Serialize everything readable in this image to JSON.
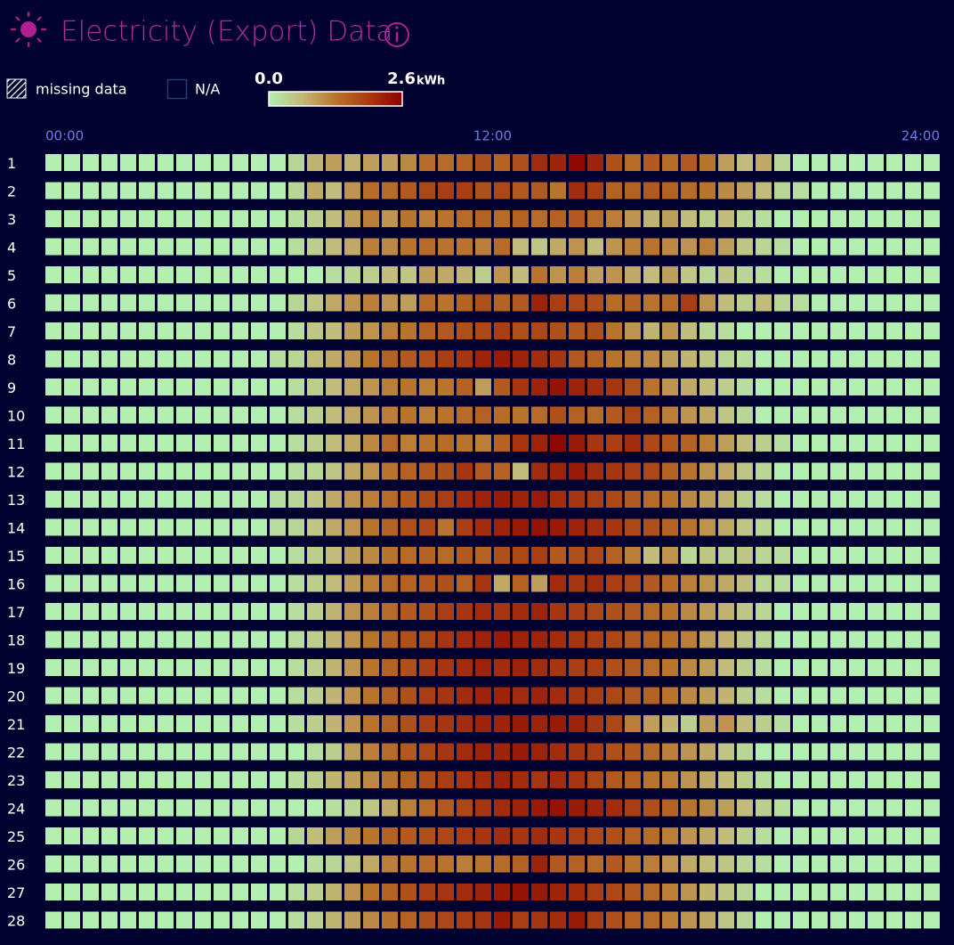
{
  "chart_data": {
    "type": "heatmap",
    "title": "Electricity (Export) Data",
    "legend_items": [
      "missing data",
      "N/A"
    ],
    "colorbar": {
      "min": {
        "value": 0,
        "label": "0.0"
      },
      "max": {
        "value": 2.6,
        "label": "2.6"
      },
      "unit": "kWh",
      "colors": [
        "#b2efb0",
        "#c2b878",
        "#b8742c",
        "#a83a12",
        "#8b0000"
      ]
    },
    "xlim": [
      0,
      24
    ],
    "xticks": [
      {
        "value": 0,
        "label": "00:00"
      },
      {
        "value": 12,
        "label": "12:00"
      },
      {
        "value": 24,
        "label": "24:00"
      }
    ],
    "rows": [
      "1",
      "2",
      "3",
      "4",
      "5",
      "6",
      "7",
      "8",
      "9",
      "10",
      "11",
      "12",
      "13",
      "14",
      "15",
      "16",
      "17",
      "18",
      "19",
      "20",
      "21",
      "22",
      "23",
      "24",
      "25",
      "26",
      "27",
      "28"
    ],
    "values": [
      [
        0,
        0,
        0,
        0,
        0,
        0,
        0,
        0,
        0,
        0,
        0,
        0,
        0,
        0.3,
        0.7,
        0.9,
        0.7,
        0.9,
        0.9,
        1.1,
        1.4,
        1.4,
        1.5,
        1.7,
        1.5,
        1.7,
        2.1,
        2.2,
        2.5,
        2.2,
        1.7,
        1.4,
        1.6,
        1.4,
        1.6,
        1.3,
        0.9,
        0.6,
        0.8,
        0.3,
        0,
        0,
        0,
        0,
        0,
        0,
        0,
        0
      ],
      [
        0,
        0,
        0,
        0,
        0,
        0,
        0,
        0,
        0,
        0,
        0,
        0,
        0,
        0.3,
        0.8,
        0.6,
        1.0,
        1.4,
        1.4,
        1.6,
        1.8,
        1.9,
        1.9,
        1.7,
        1.8,
        1.6,
        1.6,
        1.3,
        2.1,
        1.9,
        1.5,
        1.5,
        1.6,
        1.5,
        1.4,
        1.3,
        1.1,
        0.9,
        0.6,
        0.3,
        0.2,
        0,
        0,
        0,
        0,
        0,
        0,
        0
      ],
      [
        0,
        0,
        0,
        0,
        0,
        0,
        0,
        0,
        0,
        0,
        0,
        0,
        0,
        0.2,
        0.4,
        0.6,
        0.9,
        1.2,
        1.0,
        1.3,
        1.2,
        1.3,
        1.4,
        1.5,
        1.4,
        1.5,
        1.4,
        1.5,
        1.6,
        1.4,
        1.2,
        1.0,
        0.7,
        0.9,
        0.6,
        0.4,
        0.6,
        0.3,
        0.2,
        0,
        0,
        0,
        0,
        0,
        0,
        0,
        0,
        0
      ],
      [
        0,
        0,
        0,
        0,
        0,
        0,
        0,
        0,
        0,
        0,
        0,
        0,
        0,
        0.2,
        0.4,
        0.6,
        0.8,
        1.2,
        1.1,
        1.3,
        1.4,
        1.3,
        1.3,
        1.2,
        1.4,
        0.6,
        0.5,
        0.8,
        1.0,
        0.6,
        1.0,
        1.2,
        1.3,
        1.1,
        1.0,
        1.2,
        0.9,
        0.5,
        0.3,
        0.2,
        0,
        0,
        0,
        0,
        0,
        0,
        0,
        0
      ],
      [
        0,
        0,
        0,
        0,
        0,
        0,
        0,
        0,
        0,
        0,
        0,
        0,
        0,
        0,
        0,
        0.2,
        0.3,
        0.4,
        0.6,
        0.5,
        0.9,
        0.8,
        0.7,
        0.4,
        1.0,
        0.6,
        1.3,
        1.0,
        1.2,
        0.9,
        1.0,
        0.8,
        0.6,
        0.9,
        0.5,
        0.3,
        0.5,
        0.3,
        0.2,
        0,
        0,
        0,
        0,
        0,
        0,
        0,
        0,
        0
      ],
      [
        0,
        0,
        0,
        0,
        0,
        0,
        0,
        0,
        0,
        0,
        0,
        0,
        0,
        0.3,
        0.5,
        0.8,
        1.0,
        1.2,
        1.0,
        0.9,
        1.4,
        1.3,
        1.5,
        1.7,
        1.5,
        1.6,
        2.2,
        1.9,
        1.8,
        1.7,
        1.4,
        1.5,
        1.3,
        1.4,
        1.9,
        1.0,
        0.6,
        0.4,
        0.6,
        0.3,
        0.2,
        0,
        0,
        0,
        0,
        0,
        0,
        0
      ],
      [
        0,
        0,
        0,
        0,
        0,
        0,
        0,
        0,
        0,
        0,
        0,
        0,
        0,
        0.2,
        0.5,
        0.6,
        0.9,
        1.0,
        1.2,
        1.3,
        1.5,
        1.6,
        1.7,
        1.8,
        1.9,
        1.7,
        1.8,
        1.7,
        1.6,
        1.7,
        1.3,
        1.0,
        0.7,
        1.0,
        0.6,
        0.3,
        0.2,
        0,
        0,
        0,
        0,
        0,
        0,
        0,
        0,
        0,
        0,
        0
      ],
      [
        0,
        0,
        0,
        0,
        0,
        0,
        0,
        0,
        0,
        0,
        0,
        0,
        0.2,
        0.3,
        0.6,
        0.8,
        1.0,
        1.3,
        1.5,
        1.6,
        1.7,
        1.9,
        2.0,
        2.2,
        2.3,
        2.2,
        2.1,
        2.0,
        1.6,
        1.5,
        1.3,
        1.2,
        1.1,
        0.9,
        0.7,
        0.5,
        0.3,
        0.2,
        0,
        0,
        0,
        0,
        0,
        0,
        0,
        0,
        0,
        0
      ],
      [
        0,
        0,
        0,
        0,
        0,
        0,
        0,
        0,
        0,
        0,
        0,
        0,
        0,
        0.2,
        0.4,
        0.6,
        0.8,
        1.0,
        1.2,
        1.3,
        1.2,
        1.3,
        1.5,
        0.9,
        1.6,
        2.0,
        2.2,
        2.4,
        2.2,
        2.1,
        2.0,
        1.7,
        1.3,
        1.0,
        0.8,
        0.6,
        0.4,
        0.2,
        0,
        0,
        0,
        0,
        0,
        0,
        0,
        0,
        0,
        0
      ],
      [
        0,
        0,
        0,
        0,
        0,
        0,
        0,
        0,
        0,
        0,
        0,
        0,
        0,
        0.2,
        0.4,
        0.6,
        0.8,
        1.0,
        1.2,
        1.3,
        1.2,
        1.3,
        1.4,
        1.5,
        1.4,
        1.3,
        1.4,
        1.7,
        1.5,
        1.4,
        1.6,
        1.8,
        1.5,
        1.2,
        1.0,
        0.8,
        0.5,
        0.3,
        0,
        0,
        0,
        0,
        0,
        0,
        0,
        0,
        0,
        0
      ],
      [
        0,
        0,
        0,
        0,
        0,
        0,
        0,
        0,
        0,
        0,
        0,
        0,
        0,
        0.2,
        0.4,
        0.6,
        0.8,
        1.1,
        1.4,
        1.2,
        1.3,
        1.4,
        1.3,
        1.2,
        1.5,
        2.0,
        2.2,
        2.5,
        2.3,
        2.0,
        1.9,
        2.1,
        1.8,
        1.6,
        1.5,
        1.2,
        0.9,
        0.6,
        0.4,
        0.2,
        0,
        0,
        0,
        0,
        0,
        0,
        0,
        0
      ],
      [
        0,
        0,
        0,
        0,
        0,
        0,
        0,
        0,
        0,
        0,
        0,
        0,
        0,
        0.2,
        0.3,
        0.5,
        0.8,
        1.0,
        1.3,
        1.5,
        1.6,
        1.7,
        2.0,
        1.6,
        1.5,
        0.6,
        2.1,
        2.2,
        2.3,
        2.1,
        2.0,
        1.9,
        1.8,
        1.5,
        1.3,
        1.0,
        0.8,
        0.5,
        0.3,
        0,
        0,
        0,
        0,
        0,
        0,
        0,
        0,
        0
      ],
      [
        0,
        0,
        0,
        0,
        0,
        0,
        0,
        0,
        0,
        0,
        0,
        0,
        0.2,
        0.3,
        0.5,
        0.8,
        1.0,
        1.2,
        1.4,
        1.6,
        1.8,
        1.9,
        2.1,
        2.2,
        2.3,
        2.2,
        2.3,
        2.1,
        2.0,
        1.9,
        1.8,
        1.6,
        1.4,
        1.3,
        1.1,
        0.9,
        0.7,
        0.4,
        0.2,
        0,
        0,
        0,
        0,
        0,
        0,
        0,
        0,
        0
      ],
      [
        0,
        0,
        0,
        0,
        0,
        0,
        0,
        0,
        0,
        0,
        0,
        0,
        0.2,
        0.3,
        0.5,
        0.8,
        1.0,
        1.3,
        1.5,
        1.7,
        1.8,
        1.3,
        1.9,
        2.1,
        2.2,
        2.3,
        2.4,
        2.3,
        2.2,
        2.1,
        2.0,
        1.8,
        1.7,
        1.5,
        1.3,
        1.0,
        0.8,
        0.5,
        0.3,
        0,
        0,
        0,
        0,
        0,
        0,
        0,
        0,
        0
      ],
      [
        0,
        0,
        0,
        0,
        0,
        0,
        0,
        0,
        0,
        0,
        0,
        0,
        0,
        0.2,
        0.4,
        0.6,
        0.9,
        1.1,
        1.3,
        1.4,
        1.5,
        1.4,
        1.6,
        1.5,
        1.7,
        1.8,
        1.9,
        1.6,
        1.7,
        1.8,
        1.5,
        1.2,
        0.6,
        1.0,
        0.3,
        0.5,
        0.4,
        0.5,
        0.3,
        0.2,
        0,
        0,
        0,
        0,
        0,
        0,
        0,
        0
      ],
      [
        0,
        0,
        0,
        0,
        0,
        0,
        0,
        0,
        0,
        0,
        0,
        0,
        0,
        0.2,
        0.4,
        0.6,
        0.9,
        1.2,
        1.4,
        1.5,
        1.6,
        1.7,
        1.5,
        2.0,
        0.8,
        1.5,
        0.9,
        2.1,
        2.0,
        2.1,
        1.9,
        1.8,
        1.6,
        1.4,
        1.2,
        1.0,
        0.8,
        0.6,
        0.3,
        0.2,
        0,
        0,
        0,
        0,
        0,
        0,
        0,
        0
      ],
      [
        0,
        0,
        0,
        0,
        0,
        0,
        0,
        0,
        0,
        0,
        0,
        0,
        0,
        0.2,
        0.4,
        0.7,
        1.0,
        1.2,
        1.4,
        1.6,
        1.7,
        1.9,
        2.0,
        2.1,
        2.0,
        2.1,
        2.2,
        2.0,
        1.9,
        1.8,
        1.7,
        1.6,
        1.4,
        1.3,
        1.1,
        0.9,
        0.7,
        0.5,
        0.3,
        0,
        0,
        0,
        0,
        0,
        0,
        0,
        0,
        0
      ],
      [
        0,
        0,
        0,
        0,
        0,
        0,
        0,
        0,
        0,
        0,
        0,
        0,
        0,
        0.2,
        0.4,
        0.7,
        1.0,
        1.3,
        1.5,
        1.7,
        1.8,
        2.0,
        2.1,
        2.2,
        2.3,
        2.2,
        2.2,
        2.1,
        2.0,
        1.9,
        1.8,
        1.6,
        1.5,
        1.4,
        1.2,
        0.9,
        0.7,
        0.5,
        0.3,
        0,
        0,
        0,
        0,
        0,
        0,
        0,
        0,
        0
      ],
      [
        0,
        0,
        0,
        0,
        0,
        0,
        0,
        0,
        0,
        0,
        0,
        0,
        0,
        0.2,
        0.4,
        0.7,
        1.0,
        1.3,
        1.5,
        1.7,
        1.9,
        2.0,
        2.1,
        2.2,
        2.1,
        2.2,
        2.1,
        2.0,
        1.9,
        1.9,
        1.7,
        1.6,
        1.4,
        1.3,
        1.1,
        0.9,
        0.6,
        0.4,
        0.2,
        0,
        0,
        0,
        0,
        0,
        0,
        0,
        0,
        0
      ],
      [
        0,
        0,
        0,
        0,
        0,
        0,
        0,
        0,
        0,
        0,
        0,
        0,
        0,
        0.2,
        0.4,
        0.7,
        1.0,
        1.3,
        1.5,
        1.7,
        1.9,
        2.0,
        2.1,
        2.2,
        2.2,
        2.1,
        2.2,
        2.1,
        2.0,
        1.9,
        1.8,
        1.6,
        1.5,
        1.3,
        1.1,
        0.9,
        0.7,
        0.4,
        0.2,
        0,
        0,
        0,
        0,
        0,
        0,
        0,
        0,
        0
      ],
      [
        0,
        0,
        0,
        0,
        0,
        0,
        0,
        0,
        0,
        0,
        0,
        0,
        0,
        0.2,
        0.4,
        0.7,
        1.0,
        1.3,
        1.5,
        1.7,
        1.9,
        2.0,
        2.1,
        2.2,
        2.2,
        2.3,
        2.2,
        2.3,
        2.2,
        2.0,
        1.8,
        1.2,
        0.9,
        0.7,
        0.4,
        0.9,
        1.0,
        0.6,
        0.4,
        0.2,
        0,
        0,
        0,
        0,
        0,
        0,
        0,
        0
      ],
      [
        0,
        0,
        0,
        0,
        0,
        0,
        0,
        0,
        0,
        0,
        0,
        0,
        0,
        0,
        0.2,
        0.4,
        0.9,
        1.2,
        1.4,
        1.6,
        1.8,
        2.0,
        2.1,
        2.2,
        2.2,
        2.3,
        2.2,
        2.1,
        2.0,
        1.9,
        1.7,
        1.6,
        1.4,
        1.2,
        1.0,
        0.8,
        0.5,
        0.3,
        0,
        0,
        0,
        0,
        0,
        0,
        0,
        0,
        0,
        0
      ],
      [
        0,
        0,
        0,
        0,
        0,
        0,
        0,
        0,
        0,
        0,
        0,
        0,
        0,
        0.2,
        0.4,
        0.7,
        0.9,
        1.1,
        1.3,
        1.5,
        1.7,
        1.9,
        2.0,
        2.1,
        2.2,
        2.1,
        2.0,
        2.1,
        2.0,
        1.8,
        1.6,
        1.5,
        1.3,
        1.2,
        1.0,
        0.8,
        0.6,
        0.4,
        0.2,
        0,
        0,
        0,
        0,
        0,
        0,
        0,
        0,
        0
      ],
      [
        0,
        0,
        0,
        0,
        0,
        0,
        0,
        0,
        0,
        0,
        0,
        0,
        0,
        0,
        0,
        0.2,
        0.3,
        0.5,
        0.8,
        1.2,
        1.4,
        1.6,
        1.8,
        2.0,
        2.1,
        2.2,
        2.3,
        2.4,
        2.3,
        2.2,
        2.1,
        1.9,
        1.7,
        1.5,
        1.3,
        1.1,
        0.9,
        0.6,
        0.4,
        0.2,
        0,
        0,
        0,
        0,
        0,
        0,
        0,
        0
      ],
      [
        0,
        0,
        0,
        0,
        0,
        0,
        0,
        0,
        0,
        0,
        0,
        0,
        0,
        0.3,
        0.6,
        0.9,
        1.1,
        1.3,
        1.5,
        1.6,
        1.7,
        1.8,
        1.9,
        2.0,
        2.1,
        2.0,
        2.1,
        2.0,
        1.9,
        1.8,
        1.7,
        1.5,
        1.4,
        1.2,
        1.0,
        0.8,
        0.6,
        0.4,
        0.2,
        0,
        0,
        0,
        0,
        0,
        0,
        0,
        0,
        0
      ],
      [
        0,
        0,
        0,
        0,
        0,
        0,
        0,
        0,
        0,
        0,
        0,
        0,
        0,
        0,
        0.2,
        0.3,
        0.5,
        0.8,
        1.2,
        1.3,
        1.4,
        1.3,
        1.2,
        1.3,
        1.4,
        1.5,
        2.2,
        1.6,
        1.5,
        1.4,
        1.6,
        1.3,
        1.2,
        1.0,
        0.8,
        0.6,
        0.5,
        0.3,
        0.2,
        0,
        0,
        0,
        0,
        0,
        0,
        0,
        0,
        0
      ],
      [
        0,
        0,
        0,
        0,
        0,
        0,
        0,
        0,
        0,
        0,
        0,
        0,
        0,
        0.2,
        0.4,
        0.7,
        1.0,
        1.3,
        1.5,
        1.7,
        1.9,
        2.0,
        2.1,
        2.2,
        2.3,
        2.4,
        2.3,
        2.2,
        2.1,
        1.9,
        1.8,
        1.6,
        1.4,
        1.2,
        1.0,
        0.7,
        0.5,
        0.3,
        0,
        0,
        0,
        0,
        0,
        0,
        0,
        0,
        0,
        0
      ],
      [
        0,
        0,
        0,
        0,
        0,
        0,
        0,
        0,
        0,
        0,
        0,
        0,
        0,
        0.2,
        0.4,
        0.7,
        0.9,
        1.1,
        1.3,
        1.5,
        1.7,
        1.8,
        1.9,
        2.0,
        2.3,
        1.9,
        2.0,
        2.1,
        2.3,
        1.9,
        1.7,
        1.5,
        1.4,
        1.2,
        1.0,
        0.8,
        0.5,
        0.3,
        0,
        0,
        0,
        0,
        0,
        0,
        0,
        0,
        0,
        0
      ]
    ]
  }
}
